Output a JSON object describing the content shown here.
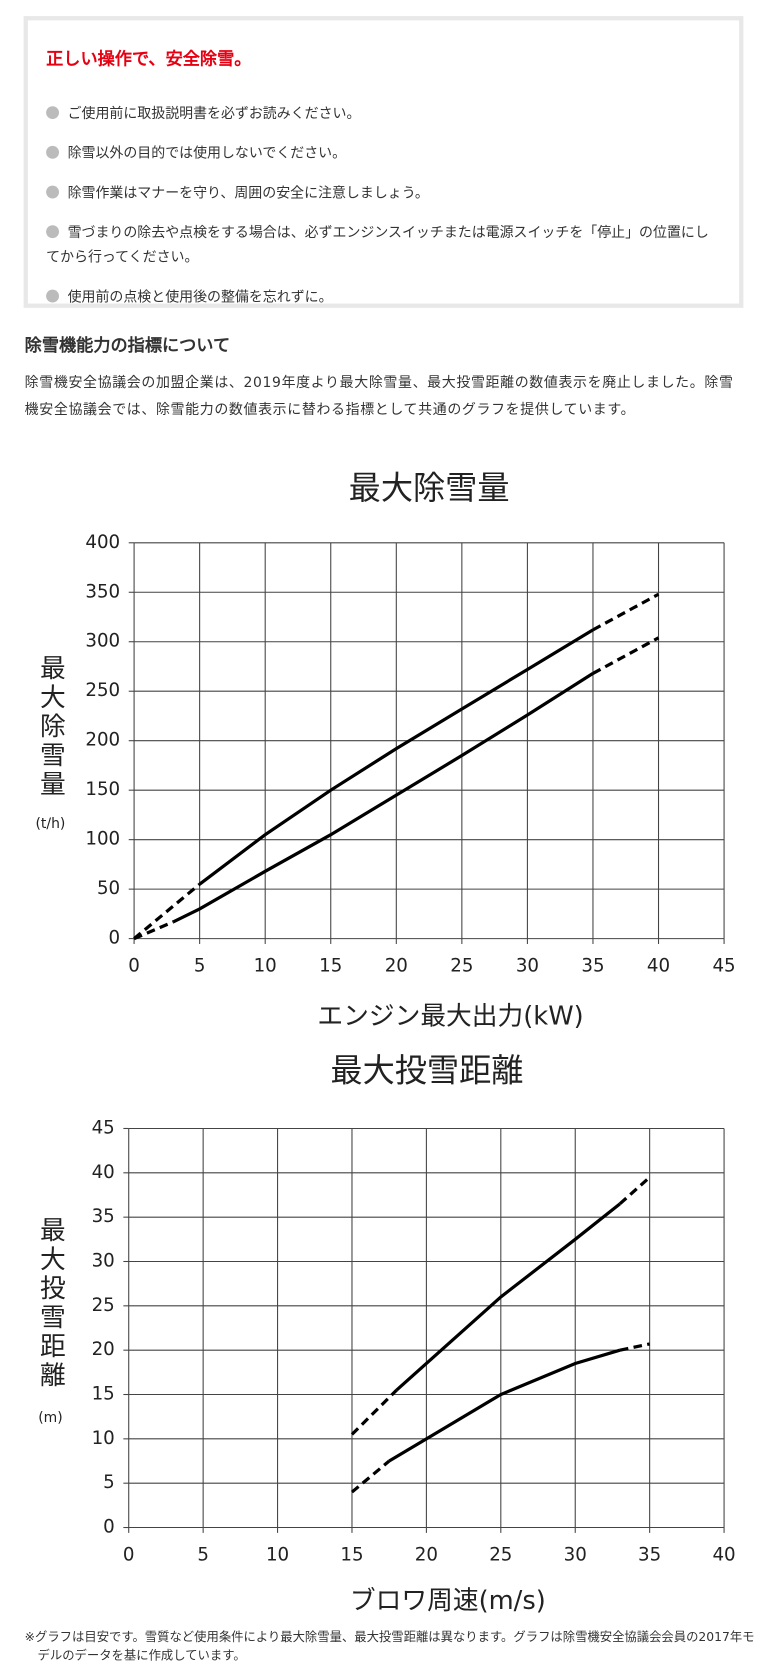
{
  "notice": {
    "title": "正しい操作で、安全除雪。",
    "items": [
      "ご使用前に取扱説明書を必ずお読みください。",
      "除雪以外の目的では使用しないでください。",
      "除雪作業はマナーを守り、周囲の安全に注意しましょう。",
      "雪づまりの除去や点検をする場合は、必ずエンジンスイッチまたは電源スイッチを「停止」の位置にしてから行ってください。",
      "使用前の点検と使用後の整備を忘れずに。"
    ]
  },
  "section": {
    "heading": "除雪機能力の指標について",
    "paragraph": "除雪機安全協議会の加盟企業は、2019年度より最大除雪量、最大投雪距離の数値表示を廃止しました。除雪機安全協議会では、除雪能力の数値表示に替わる指標として共通のグラフを提供しています。"
  },
  "chart_data": [
    {
      "type": "line",
      "title": "最大除雪量",
      "x_label": "エンジン最大出力(kW)",
      "y_label": "最大除雪量",
      "y_unit": "(t/h)",
      "xlim": [
        0,
        45
      ],
      "ylim": [
        0,
        400
      ],
      "xticks": [
        0,
        5,
        10,
        15,
        20,
        25,
        30,
        35,
        40,
        45
      ],
      "yticks": [
        0,
        50,
        100,
        150,
        200,
        250,
        300,
        350,
        400
      ],
      "grid": true,
      "color": "#000000",
      "series": [
        {
          "x": [
            0,
            5
          ],
          "values": [
            0,
            55
          ],
          "dashed": true
        },
        {
          "x": [
            5,
            10,
            15,
            20,
            25,
            30,
            35
          ],
          "values": [
            55,
            105,
            150,
            192,
            232,
            272,
            312
          ],
          "dashed": false
        },
        {
          "x": [
            35,
            40
          ],
          "values": [
            312,
            348
          ],
          "dashed": true
        },
        {
          "x": [
            0,
            3
          ],
          "values": [
            0,
            17
          ],
          "dashed": true
        },
        {
          "x": [
            3,
            5,
            10,
            15,
            20,
            25,
            30,
            35
          ],
          "values": [
            17,
            30,
            68,
            105,
            145,
            185,
            226,
            268
          ],
          "dashed": false
        },
        {
          "x": [
            35,
            40
          ],
          "values": [
            268,
            304
          ],
          "dashed": true
        }
      ]
    },
    {
      "type": "line",
      "title": "最大投雪距離",
      "x_label": "ブロワ周速(m/s)",
      "y_label": "最大投雪距離",
      "y_unit": "(m)",
      "xlim": [
        0,
        40
      ],
      "ylim": [
        0,
        45
      ],
      "xticks": [
        0,
        5,
        10,
        15,
        20,
        25,
        30,
        35,
        40
      ],
      "yticks": [
        0,
        5,
        10,
        15,
        20,
        25,
        30,
        35,
        40,
        45
      ],
      "grid": true,
      "color": "#000000",
      "series": [
        {
          "x": [
            15,
            18
          ],
          "values": [
            10.5,
            15.5
          ],
          "dashed": true
        },
        {
          "x": [
            18,
            20,
            25,
            30,
            33
          ],
          "values": [
            15.5,
            18.5,
            26,
            32.5,
            36.5
          ],
          "dashed": false
        },
        {
          "x": [
            33,
            35
          ],
          "values": [
            36.5,
            39.5
          ],
          "dashed": true
        },
        {
          "x": [
            15,
            17.5
          ],
          "values": [
            4,
            7.5
          ],
          "dashed": true
        },
        {
          "x": [
            17.5,
            20,
            25,
            30,
            33
          ],
          "values": [
            7.5,
            10,
            15,
            18.5,
            20
          ],
          "dashed": false
        },
        {
          "x": [
            33,
            35
          ],
          "values": [
            20,
            20.7
          ],
          "dashed": true
        }
      ]
    }
  ],
  "footnote": "※グラフは目安です。雪質など使用条件により最大除雪量、最大投雪距離は異なります。グラフは除雪機安全協議会会員の2017年モデルのデータを基に作成しています。"
}
